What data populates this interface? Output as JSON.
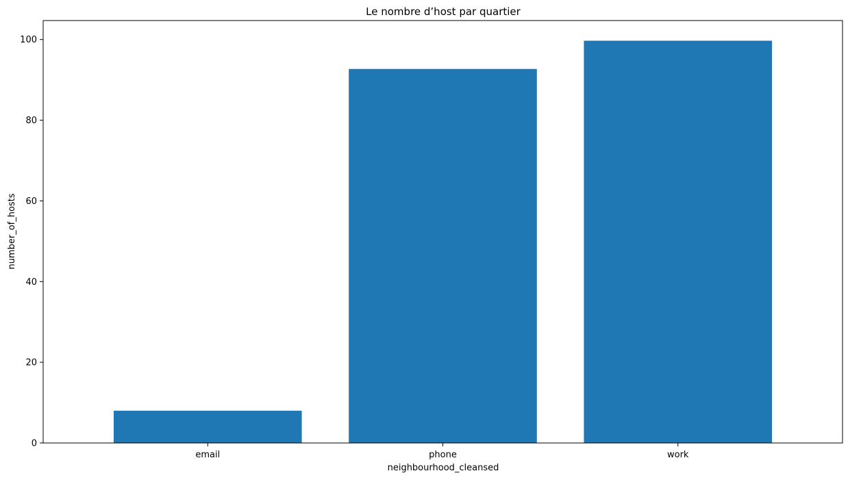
{
  "chart_data": {
    "type": "bar",
    "title": "Le nombre d’host par quartier",
    "xlabel": "neighbourhood_cleansed",
    "ylabel": "number_of_hosts",
    "categories": [
      "email",
      "phone",
      "work"
    ],
    "values": [
      8,
      92.7,
      99.7
    ],
    "ylim": [
      0,
      104.7
    ],
    "yticks": [
      0,
      20,
      40,
      60,
      80,
      100
    ],
    "grid": false,
    "legend": "none",
    "bar_color": "#1f77b4"
  }
}
